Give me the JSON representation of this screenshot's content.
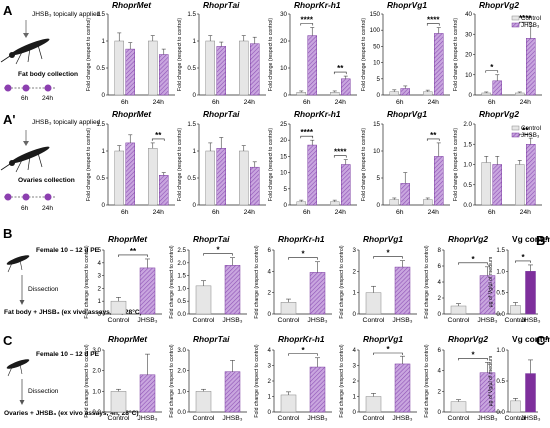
{
  "panels": {
    "A": {
      "label": "A",
      "steps": [
        "JHSB₃ topically applied",
        "Fat body collection"
      ],
      "timepoints": [
        "6h",
        "24h"
      ]
    },
    "A2": {
      "label": "A'",
      "steps": [
        "JHSB₃ topically applied",
        "Ovaries collection"
      ],
      "timepoints": [
        "6h",
        "24h"
      ]
    },
    "B": {
      "label": "B",
      "steps": [
        "Female 10 – 12 d PE",
        "Dissection",
        "Fat body + JHSB₃ (ex vivo assays, 4h, 28°C)"
      ]
    },
    "B2": {
      "label": "B'"
    },
    "C": {
      "label": "C",
      "steps": [
        "Female 10 – 12 d PE",
        "Dissection",
        "Ovaries + JHSB₃ (ex vivo assays, 4h, 28°C)"
      ]
    },
    "C2": {
      "label": "C'"
    }
  },
  "legend": {
    "control": "Control",
    "treated": "JHSB₃"
  },
  "colors": {
    "control": "#e6e6e6",
    "treated": "#b48bd0",
    "treated_dark": "#7a3aa0",
    "solid_treated": "#7e2f9c",
    "dot": "#8c3fb0"
  },
  "chart_data": [
    {
      "id": "A1",
      "row": "A",
      "type": "bar",
      "grouped": true,
      "title": "RhoprMet",
      "ylabel": "Fold change (respect to control)",
      "ylim": [
        0,
        1.5
      ],
      "yticks": [
        "0",
        "0.5",
        "1",
        "1.5"
      ],
      "categories": [
        "6h",
        "24h"
      ],
      "series": [
        {
          "name": "Control",
          "values": [
            1.0,
            1.0
          ],
          "err": [
            0.15,
            0.1
          ]
        },
        {
          "name": "JHSB₃",
          "values": [
            0.85,
            0.75
          ],
          "err": [
            0.12,
            0.1
          ]
        }
      ],
      "sig": []
    },
    {
      "id": "A2",
      "row": "A",
      "type": "bar",
      "grouped": true,
      "title": "RhoprTai",
      "ylabel": "Fold change (respect to control)",
      "ylim": [
        0,
        1.5
      ],
      "yticks": [
        "0",
        "0.5",
        "1",
        "1.5"
      ],
      "categories": [
        "6h",
        "24h"
      ],
      "series": [
        {
          "name": "Control",
          "values": [
            1.0,
            1.0
          ],
          "err": [
            0.1,
            0.1
          ]
        },
        {
          "name": "JHSB₃",
          "values": [
            0.9,
            0.95
          ],
          "err": [
            0.08,
            0.12
          ]
        }
      ],
      "sig": []
    },
    {
      "id": "A3",
      "row": "A",
      "type": "bar",
      "grouped": true,
      "title": "RhoprKr-h1",
      "ylabel": "Fold change (respect to control)",
      "ylim": [
        0,
        30
      ],
      "yticks": [
        "0",
        "10",
        "20",
        "30"
      ],
      "categories": [
        "6h",
        "24h"
      ],
      "series": [
        {
          "name": "Control",
          "values": [
            1,
            1
          ],
          "err": [
            0.5,
            0.5
          ]
        },
        {
          "name": "JHSB₃",
          "values": [
            22,
            6
          ],
          "err": [
            3,
            1
          ]
        }
      ],
      "sig": [
        {
          "cat": 0,
          "text": "****"
        },
        {
          "cat": 1,
          "text": "**"
        }
      ]
    },
    {
      "id": "A4",
      "row": "A",
      "type": "bar",
      "grouped": true,
      "title": "RhoprVg1",
      "ylabel": "Fold change (respect to control)",
      "ylim": [
        0,
        150
      ],
      "yticks": [
        "0",
        "5",
        "10",
        "50",
        "100",
        "150"
      ],
      "categories": [
        "6h",
        "24h"
      ],
      "series": [
        {
          "name": "Control",
          "values": [
            1,
            1
          ],
          "err": [
            0.6,
            0.5
          ]
        },
        {
          "name": "JHSB₃",
          "values": [
            2,
            90
          ],
          "err": [
            0.8,
            18
          ]
        }
      ],
      "sig": [
        {
          "cat": 1,
          "text": "****"
        }
      ]
    },
    {
      "id": "A5",
      "row": "A",
      "type": "bar",
      "grouped": true,
      "title": "RhoprVg2",
      "ylabel": "Fold change (respect to control)",
      "ylim": [
        0,
        40
      ],
      "yticks": [
        "0",
        "10",
        "20",
        "30",
        "40"
      ],
      "categories": [
        "6h",
        "24h"
      ],
      "series": [
        {
          "name": "Control",
          "values": [
            1,
            1
          ],
          "err": [
            0.5,
            0.5
          ]
        },
        {
          "name": "JHSB₃",
          "values": [
            7,
            28
          ],
          "err": [
            3,
            6
          ]
        }
      ],
      "sig": [
        {
          "cat": 0,
          "text": "*"
        },
        {
          "cat": 1,
          "text": "****"
        }
      ],
      "legend": true
    },
    {
      "id": "A6",
      "row": "A2",
      "type": "bar",
      "grouped": true,
      "title": "RhoprMet",
      "ylabel": "Fold change (respect to control)",
      "ylim": [
        0,
        1.5
      ],
      "yticks": [
        "0",
        "0.5",
        "1",
        "1.5"
      ],
      "categories": [
        "6h",
        "24h"
      ],
      "series": [
        {
          "name": "Control",
          "values": [
            1.0,
            1.05
          ],
          "err": [
            0.1,
            0.1
          ]
        },
        {
          "name": "JHSB₃",
          "values": [
            1.15,
            0.55
          ],
          "err": [
            0.15,
            0.05
          ]
        }
      ],
      "sig": [
        {
          "cat": 1,
          "text": "**"
        }
      ]
    },
    {
      "id": "A7",
      "row": "A2",
      "type": "bar",
      "grouped": true,
      "title": "RhoprTai",
      "ylabel": "Fold change (respect to control)",
      "ylim": [
        0,
        1.5
      ],
      "yticks": [
        "0",
        "0.5",
        "1",
        "1.5"
      ],
      "categories": [
        "6h",
        "24h"
      ],
      "series": [
        {
          "name": "Control",
          "values": [
            1.0,
            1.0
          ],
          "err": [
            0.15,
            0.1
          ]
        },
        {
          "name": "JHSB₃",
          "values": [
            1.05,
            0.7
          ],
          "err": [
            0.2,
            0.1
          ]
        }
      ],
      "sig": []
    },
    {
      "id": "A8",
      "row": "A2",
      "type": "bar",
      "grouped": true,
      "title": "RhoprKr-h1",
      "ylabel": "Fold change (respect to control)",
      "ylim": [
        0,
        25
      ],
      "yticks": [
        "0",
        "5",
        "10",
        "15",
        "20",
        "25"
      ],
      "categories": [
        "6h",
        "24h"
      ],
      "series": [
        {
          "name": "Control",
          "values": [
            1,
            1
          ],
          "err": [
            0.5,
            0.5
          ]
        },
        {
          "name": "JHSB₃",
          "values": [
            18.5,
            12.5
          ],
          "err": [
            1.5,
            1.5
          ]
        }
      ],
      "sig": [
        {
          "cat": 0,
          "text": "****"
        },
        {
          "cat": 1,
          "text": "****"
        }
      ]
    },
    {
      "id": "A9",
      "row": "A2",
      "type": "bar",
      "grouped": true,
      "title": "RhoprVg1",
      "ylabel": "Fold change (respect to control)",
      "ylim": [
        0,
        15
      ],
      "yticks": [
        "0",
        "5",
        "10",
        "15"
      ],
      "categories": [
        "6h",
        "24h"
      ],
      "series": [
        {
          "name": "Control",
          "values": [
            1,
            1
          ],
          "err": [
            0.3,
            0.3
          ]
        },
        {
          "name": "JHSB₃",
          "values": [
            4,
            9
          ],
          "err": [
            2,
            2.5
          ]
        }
      ],
      "sig": [
        {
          "cat": 1,
          "text": "**"
        }
      ]
    },
    {
      "id": "A10",
      "row": "A2",
      "type": "bar",
      "grouped": true,
      "title": "RhoprVg2",
      "ylabel": "Fold change (respect to control)",
      "ylim": [
        0,
        2
      ],
      "yticks": [
        "0.0",
        "0.5",
        "1.0",
        "1.5",
        "2.0"
      ],
      "categories": [
        "6h",
        "24h"
      ],
      "series": [
        {
          "name": "Control",
          "values": [
            1.05,
            1.0
          ],
          "err": [
            0.15,
            0.1
          ]
        },
        {
          "name": "JHSB₃",
          "values": [
            1.0,
            1.5
          ],
          "err": [
            0.2,
            0.15
          ]
        }
      ],
      "sig": [
        {
          "cat": 1,
          "text": "**"
        }
      ],
      "legend": true
    },
    {
      "id": "B1",
      "row": "B",
      "type": "bar",
      "grouped": false,
      "title": "RhoprMet",
      "ylabel": "Fold change (respect to control)",
      "ylim": [
        0,
        5
      ],
      "yticks": [
        "0",
        "1",
        "2",
        "3",
        "4",
        "5"
      ],
      "categories": [
        "Control",
        "JHSB₃"
      ],
      "values": [
        1,
        3.6
      ],
      "err": [
        0.3,
        0.7
      ],
      "sig": [
        {
          "text": "**"
        }
      ]
    },
    {
      "id": "B2",
      "row": "B",
      "type": "bar",
      "grouped": false,
      "title": "RhoprTai",
      "ylabel": "Fold change (respect to control)",
      "ylim": [
        0,
        2.5
      ],
      "yticks": [
        "0.0",
        "0.5",
        "1.0",
        "1.5",
        "2.0",
        "2.5"
      ],
      "categories": [
        "Control",
        "JHSB₃"
      ],
      "values": [
        1.1,
        1.9
      ],
      "err": [
        0.2,
        0.3
      ],
      "sig": [
        {
          "text": "*"
        }
      ]
    },
    {
      "id": "B3",
      "row": "B",
      "type": "bar",
      "grouped": false,
      "title": "RhoprKr-h1",
      "ylabel": "Fold change (respect to control)",
      "ylim": [
        0,
        6
      ],
      "yticks": [
        "0",
        "2",
        "4",
        "6"
      ],
      "categories": [
        "Control",
        "JHSB₃"
      ],
      "values": [
        1.1,
        3.9
      ],
      "err": [
        0.3,
        1
      ],
      "sig": [
        {
          "text": "*"
        }
      ]
    },
    {
      "id": "B4",
      "row": "B",
      "type": "bar",
      "grouped": false,
      "title": "RhoprVg1",
      "ylabel": "Fold change (respect to control)",
      "ylim": [
        0,
        3
      ],
      "yticks": [
        "0",
        "1",
        "2",
        "3"
      ],
      "categories": [
        "Control",
        "JHSB₃"
      ],
      "values": [
        1.0,
        2.2
      ],
      "err": [
        0.3,
        0.3
      ],
      "sig": [
        {
          "text": "*"
        }
      ]
    },
    {
      "id": "B5",
      "row": "B",
      "type": "bar",
      "grouped": false,
      "title": "RhoprVg2",
      "ylabel": "Fold change (respect to control)",
      "ylim": [
        0,
        8
      ],
      "yticks": [
        "0",
        "2",
        "4",
        "6",
        "8"
      ],
      "categories": [
        "Control",
        "JHSB₃"
      ],
      "values": [
        1.0,
        4.8
      ],
      "err": [
        0.3,
        1.1
      ],
      "sig": [
        {
          "text": "*"
        }
      ]
    },
    {
      "id": "B6",
      "row": "B",
      "type": "bar",
      "grouped": false,
      "title": "Vg content",
      "ylabel": "µg of Vg/µl of medium",
      "ylim": [
        0,
        1.5
      ],
      "yticks": [
        "0.0",
        "0.5",
        "1.0",
        "1.5"
      ],
      "categories": [
        "Control",
        "JHSB₃"
      ],
      "values": [
        0.2,
        1.0
      ],
      "err": [
        0.07,
        0.15
      ],
      "sig": [
        {
          "text": "*"
        }
      ],
      "solid": true
    },
    {
      "id": "C1",
      "row": "C",
      "type": "bar",
      "grouped": false,
      "title": "RhoprMet",
      "ylabel": "Fold change (respect to control)",
      "ylim": [
        0,
        3
      ],
      "yticks": [
        "0.0",
        "1.0",
        "2.0",
        "3.0"
      ],
      "categories": [
        "Control",
        "JHSB₃"
      ],
      "values": [
        1.0,
        1.8
      ],
      "err": [
        0.1,
        1.0
      ],
      "sig": []
    },
    {
      "id": "C2",
      "row": "C",
      "type": "bar",
      "grouped": false,
      "title": "RhoprTai",
      "ylabel": "Fold change (respect to control)",
      "ylim": [
        0,
        3
      ],
      "yticks": [
        "0.0",
        "1.0",
        "2.0",
        "3.0"
      ],
      "categories": [
        "Control",
        "JHSB₃"
      ],
      "values": [
        1.0,
        1.95
      ],
      "err": [
        0.1,
        0.55
      ],
      "sig": []
    },
    {
      "id": "C3",
      "row": "C",
      "type": "bar",
      "grouped": false,
      "title": "RhoprKr-h1",
      "ylabel": "Fold change (respect to control)",
      "ylim": [
        0,
        4
      ],
      "yticks": [
        "0",
        "1",
        "2",
        "3",
        "4"
      ],
      "categories": [
        "Control",
        "JHSB₃"
      ],
      "values": [
        1.1,
        2.9
      ],
      "err": [
        0.2,
        0.6
      ],
      "sig": [
        {
          "text": "*"
        }
      ]
    },
    {
      "id": "C4",
      "row": "C",
      "type": "bar",
      "grouped": false,
      "title": "RhoprVg1",
      "ylabel": "Fold change (respect to control)",
      "ylim": [
        0,
        4
      ],
      "yticks": [
        "0",
        "1",
        "2",
        "3",
        "4"
      ],
      "categories": [
        "Control",
        "JHSB₃"
      ],
      "values": [
        1.0,
        3.1
      ],
      "err": [
        0.2,
        0.5
      ],
      "sig": [
        {
          "text": "*"
        }
      ]
    },
    {
      "id": "C5",
      "row": "C",
      "type": "bar",
      "grouped": false,
      "title": "RhoprVg2",
      "ylabel": "Fold change (respect to control)",
      "ylim": [
        0,
        6
      ],
      "yticks": [
        "0",
        "2",
        "4",
        "6"
      ],
      "categories": [
        "Control",
        "JHSB₃"
      ],
      "values": [
        1.0,
        3.8
      ],
      "err": [
        0.2,
        1.0
      ],
      "sig": [
        {
          "text": "*"
        }
      ]
    },
    {
      "id": "C6",
      "row": "C",
      "type": "bar",
      "grouped": false,
      "title": "Vg content",
      "ylabel": "µg of Vg/µl of medium",
      "ylim": [
        0,
        1
      ],
      "yticks": [
        "0.0",
        "0.5",
        "1.0"
      ],
      "categories": [
        "Control",
        "JHSB₃"
      ],
      "values": [
        0.18,
        0.62
      ],
      "err": [
        0.04,
        0.22
      ],
      "sig": [],
      "solid": true
    }
  ]
}
